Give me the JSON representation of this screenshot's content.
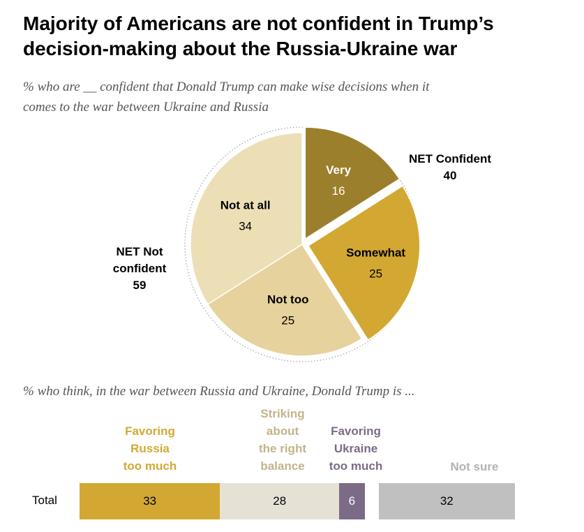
{
  "title": {
    "line1": "Majority of Americans are not confident in Trump’s",
    "line2": "decision-making about the Russia-Ukraine war"
  },
  "subtitle": {
    "line1": "% who are __ confident that Donald Trump can make wise decisions when it",
    "line2": "comes to the war between Ukraine and Russia"
  },
  "net": {
    "confident": {
      "line1": "NET Confident",
      "value": "40"
    },
    "not_confident": {
      "line1": "NET Not",
      "line2": "confident",
      "value": "59"
    }
  },
  "subtitle2": "% who think, in the war between Russia and Ukraine, Donald Trump is ...",
  "colors": {
    "very": "#9c7f2c",
    "somewhat": "#d2a832",
    "not_too": "#e6d29c",
    "not_at_all": "#ecdfb5",
    "favoring_russia": "#d3a832",
    "right_balance": "#e5e1d4",
    "favoring_ukraine": "#7b6b86",
    "not_sure": "#c0c0c0",
    "right_balance_label": "#c2b48a",
    "not_sure_label": "#b3b3b3"
  },
  "chart_data": [
    {
      "type": "pie",
      "title": "% who are __ confident that Donald Trump can make wise decisions when it comes to the war between Ukraine and Russia",
      "slices": [
        {
          "label": "Very",
          "value": 16
        },
        {
          "label": "Somewhat",
          "value": 25
        },
        {
          "label": "Not too",
          "value": 25
        },
        {
          "label": "Not at all",
          "value": 34
        }
      ],
      "groups": [
        {
          "label": "NET Confident",
          "value": 40
        },
        {
          "label": "NET Not confident",
          "value": 59
        }
      ]
    },
    {
      "type": "bar",
      "orientation": "horizontal-stacked",
      "title": "% who think, in the war between Russia and Ukraine, Donald Trump is ...",
      "categories": [
        "Total"
      ],
      "series": [
        {
          "name": "Favoring Russia too much",
          "label_lines": [
            "Favoring",
            "Russia",
            "too much"
          ],
          "values": [
            33
          ]
        },
        {
          "name": "Striking about the right balance",
          "label_lines": [
            "Striking",
            "about",
            "the right",
            "balance"
          ],
          "values": [
            28
          ]
        },
        {
          "name": "Favoring Ukraine too much",
          "label_lines": [
            "Favoring",
            "Ukraine",
            "too much"
          ],
          "values": [
            6
          ]
        },
        {
          "name": "Not sure",
          "label_lines": [
            "Not sure"
          ],
          "values": [
            32
          ]
        }
      ]
    }
  ]
}
